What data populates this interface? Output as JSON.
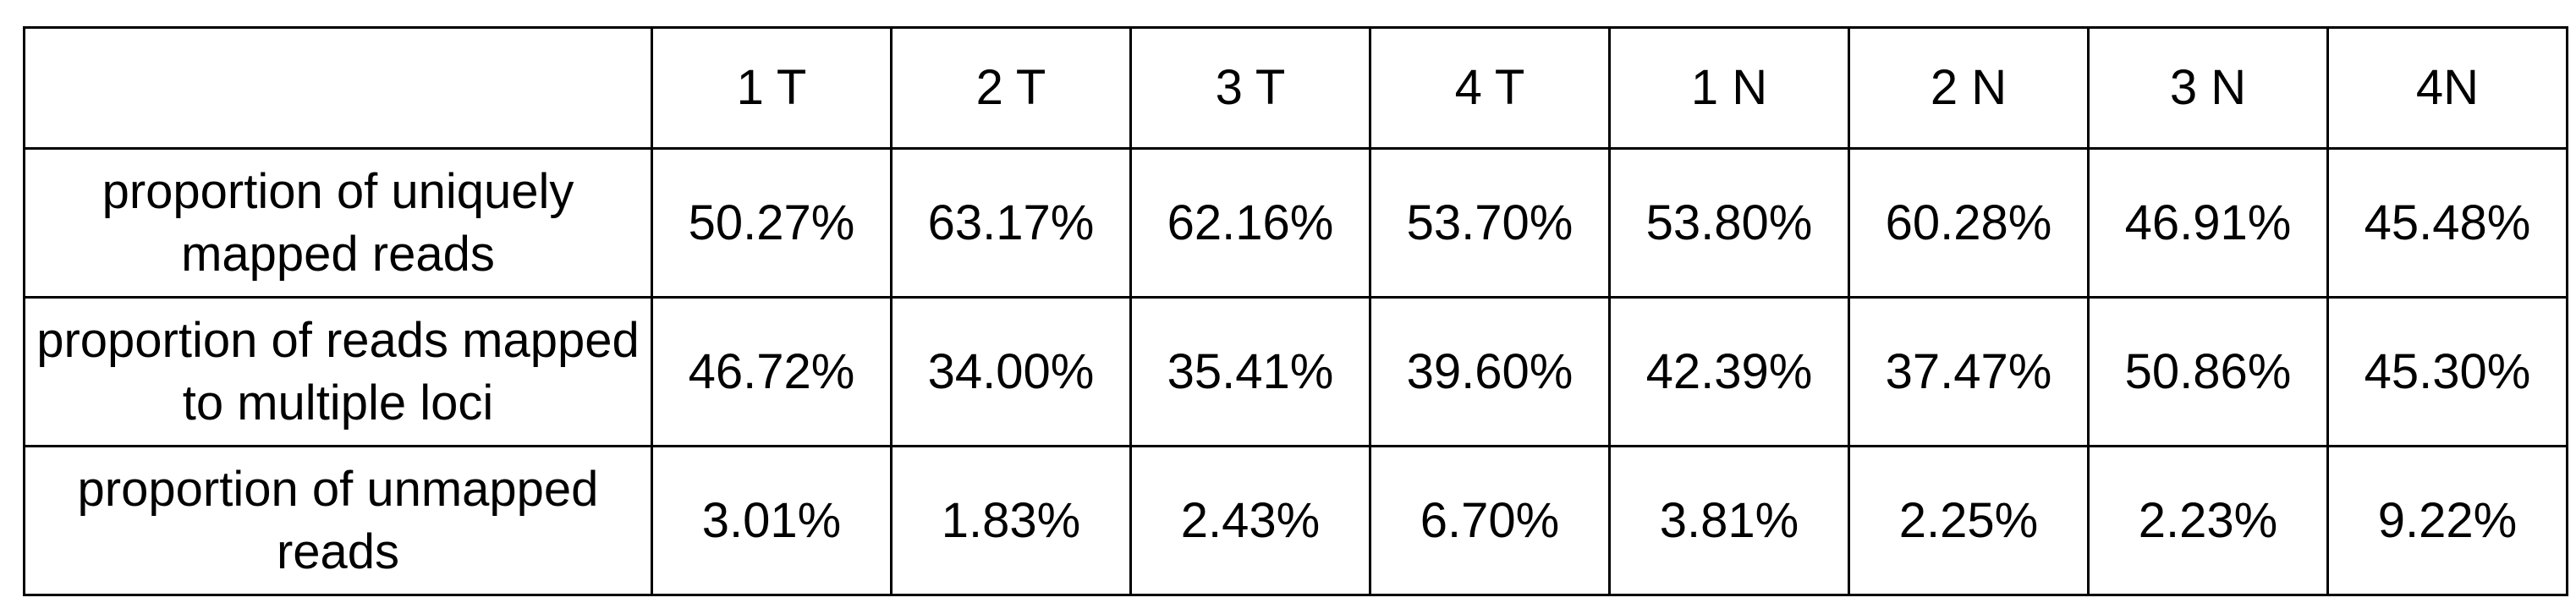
{
  "table": {
    "columns": [
      "",
      "1 T",
      "2 T",
      "3 T",
      "4 T",
      "1 N",
      "2 N",
      "3 N",
      "4N"
    ],
    "rows": [
      {
        "label": "proportion of uniquely mapped reads",
        "values": [
          "50.27%",
          "63.17%",
          "62.16%",
          "53.70%",
          "53.80%",
          "60.28%",
          "46.91%",
          "45.48%"
        ]
      },
      {
        "label": "proportion of reads mapped to multiple loci",
        "values": [
          "46.72%",
          "34.00%",
          "35.41%",
          "39.60%",
          "42.39%",
          "37.47%",
          "50.86%",
          "45.30%"
        ]
      },
      {
        "label": "proportion of unmapped reads",
        "values": [
          "3.01%",
          "1.83%",
          "2.43%",
          "6.70%",
          "3.81%",
          "2.25%",
          "2.23%",
          "9.22%"
        ]
      }
    ]
  }
}
